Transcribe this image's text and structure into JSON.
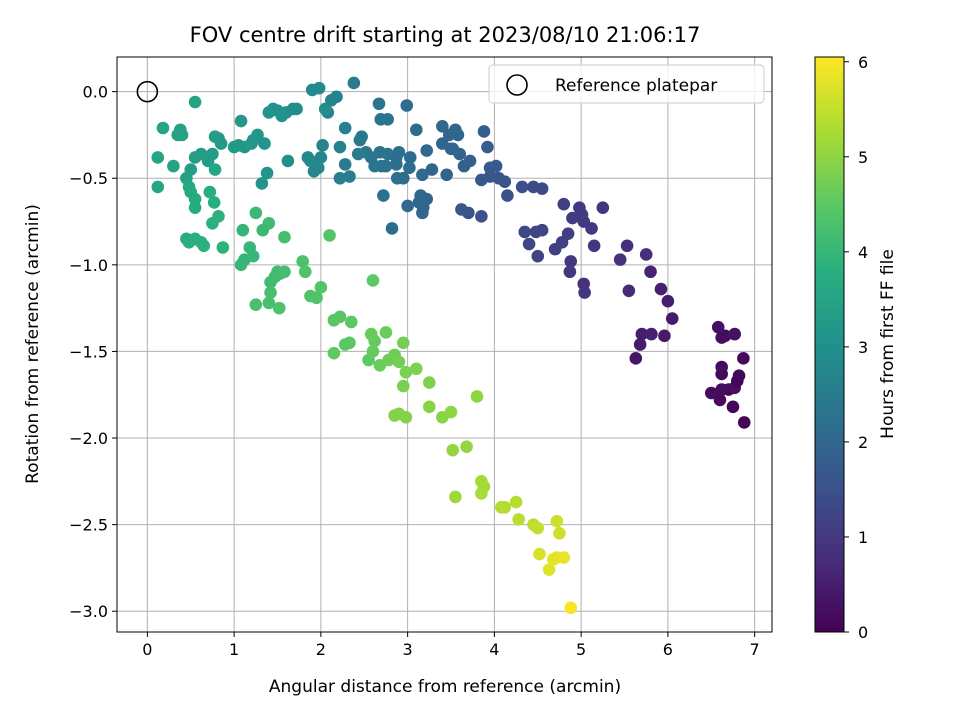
{
  "chart_data": {
    "type": "scatter",
    "title": "FOV centre drift starting at 2023/08/10 21:06:17",
    "xlabel": "Angular distance from reference (arcmin)",
    "ylabel": "Rotation from reference (arcmin)",
    "xlim": [
      -0.35,
      7.2
    ],
    "ylim": [
      -3.12,
      0.2
    ],
    "xticks": [
      "0",
      "1",
      "2",
      "3",
      "4",
      "5",
      "6",
      "7"
    ],
    "yticks": [
      "0.0",
      "−0.5",
      "−1.0",
      "−1.5",
      "−2.0",
      "−2.5",
      "−3.0"
    ],
    "grid": true,
    "legend": {
      "entry": "Reference platepar",
      "placement": "top-right"
    },
    "reference_point": {
      "x": 0,
      "y": 0
    },
    "colorbar": {
      "label": "Hours from first FF file",
      "range": [
        0,
        6.05
      ],
      "ticks": [
        "0",
        "1",
        "2",
        "3",
        "4",
        "5",
        "6"
      ],
      "colormap": "viridis"
    },
    "points": [
      [
        6.88,
        -1.91,
        0.05
      ],
      [
        6.75,
        -1.82,
        0.1
      ],
      [
        6.6,
        -1.78,
        0.15
      ],
      [
        6.5,
        -1.74,
        0.2
      ],
      [
        6.7,
        -1.72,
        0.15
      ],
      [
        6.62,
        -1.72,
        0.2
      ],
      [
        6.77,
        -1.71,
        0.25
      ],
      [
        6.8,
        -1.67,
        0.1
      ],
      [
        6.62,
        -1.63,
        0.15
      ],
      [
        6.82,
        -1.64,
        0.1
      ],
      [
        6.62,
        -1.59,
        0.2
      ],
      [
        6.87,
        -1.54,
        0.15
      ],
      [
        6.62,
        -1.42,
        0.25
      ],
      [
        6.66,
        -1.41,
        0.2
      ],
      [
        6.58,
        -1.36,
        0.3
      ],
      [
        6.77,
        -1.4,
        0.3
      ],
      [
        6.05,
        -1.31,
        0.45
      ],
      [
        6.0,
        -1.21,
        0.5
      ],
      [
        5.92,
        -1.14,
        0.55
      ],
      [
        5.8,
        -1.04,
        0.6
      ],
      [
        5.63,
        -1.54,
        0.35
      ],
      [
        5.68,
        -1.46,
        0.45
      ],
      [
        5.7,
        -1.4,
        0.5
      ],
      [
        5.81,
        -1.4,
        0.55
      ],
      [
        5.96,
        -1.41,
        0.45
      ],
      [
        5.55,
        -1.15,
        0.7
      ],
      [
        5.75,
        -0.94,
        0.8
      ],
      [
        5.53,
        -0.89,
        0.8
      ],
      [
        5.45,
        -0.97,
        0.85
      ],
      [
        5.25,
        -0.67,
        0.9
      ],
      [
        5.12,
        -0.79,
        1.0
      ],
      [
        5.15,
        -0.89,
        0.95
      ],
      [
        5.03,
        -0.75,
        1.0
      ],
      [
        5.01,
        -0.71,
        1.05
      ],
      [
        4.98,
        -0.67,
        1.0
      ],
      [
        5.03,
        -1.11,
        0.85
      ],
      [
        5.04,
        -1.16,
        0.9
      ],
      [
        4.9,
        -0.73,
        1.05
      ],
      [
        4.85,
        -0.82,
        1.1
      ],
      [
        4.8,
        -0.65,
        1.1
      ],
      [
        4.88,
        -0.98,
        1.0
      ],
      [
        4.87,
        -1.04,
        1.0
      ],
      [
        4.78,
        -0.87,
        1.15
      ],
      [
        4.7,
        -0.91,
        1.15
      ],
      [
        4.55,
        -0.8,
        1.2
      ],
      [
        4.5,
        -0.95,
        1.2
      ],
      [
        4.48,
        -0.81,
        1.25
      ],
      [
        4.4,
        -0.88,
        1.25
      ],
      [
        4.35,
        -0.81,
        1.3
      ],
      [
        4.55,
        -0.56,
        1.35
      ],
      [
        4.45,
        -0.55,
        1.4
      ],
      [
        4.32,
        -0.55,
        1.45
      ],
      [
        4.15,
        -0.6,
        1.5
      ],
      [
        4.12,
        -0.52,
        1.55
      ],
      [
        4.05,
        -0.5,
        1.6
      ],
      [
        3.95,
        -0.49,
        1.6
      ],
      [
        3.85,
        -0.51,
        1.65
      ],
      [
        4.02,
        -0.43,
        1.7
      ],
      [
        3.95,
        -0.44,
        1.7
      ],
      [
        3.92,
        -0.32,
        1.75
      ],
      [
        3.88,
        -0.23,
        1.8
      ],
      [
        3.85,
        -0.72,
        1.5
      ],
      [
        3.7,
        -0.7,
        1.55
      ],
      [
        3.62,
        -0.68,
        1.6
      ],
      [
        3.72,
        -0.4,
        1.85
      ],
      [
        3.65,
        -0.43,
        1.85
      ],
      [
        3.6,
        -0.36,
        1.9
      ],
      [
        3.58,
        -0.25,
        1.95
      ],
      [
        3.55,
        -0.22,
        2.0
      ],
      [
        3.5,
        -0.33,
        1.95
      ],
      [
        3.45,
        -0.48,
        1.9
      ],
      [
        3.4,
        -0.3,
        2.0
      ],
      [
        3.4,
        -0.2,
        2.0
      ],
      [
        3.28,
        -0.45,
        2.0
      ],
      [
        3.22,
        -0.62,
        1.95
      ],
      [
        3.18,
        -0.67,
        1.95
      ],
      [
        3.15,
        -0.6,
        2.0
      ],
      [
        3.17,
        -0.7,
        2.0
      ],
      [
        3.22,
        -0.34,
        2.05
      ],
      [
        3.17,
        -0.48,
        2.05
      ],
      [
        3.1,
        -0.22,
        2.1
      ],
      [
        3.03,
        -0.38,
        2.1
      ],
      [
        3.02,
        -0.44,
        2.15
      ],
      [
        2.95,
        -0.5,
        2.15
      ],
      [
        2.9,
        -0.35,
        2.2
      ],
      [
        2.87,
        -0.42,
        2.2
      ],
      [
        2.77,
        -0.36,
        2.25
      ],
      [
        2.75,
        -0.43,
        2.25
      ],
      [
        2.7,
        -0.43,
        2.3
      ],
      [
        2.68,
        -0.35,
        2.3
      ],
      [
        2.62,
        -0.43,
        2.35
      ],
      [
        2.58,
        -0.38,
        2.35
      ],
      [
        2.52,
        -0.35,
        2.4
      ],
      [
        2.47,
        -0.26,
        2.4
      ],
      [
        2.45,
        -0.28,
        2.45
      ],
      [
        2.43,
        -0.36,
        2.5
      ],
      [
        2.28,
        -0.42,
        2.5
      ],
      [
        2.22,
        -0.5,
        2.55
      ],
      [
        2.33,
        -0.49,
        2.55
      ],
      [
        2.28,
        -0.21,
        2.6
      ],
      [
        2.22,
        -0.32,
        2.6
      ],
      [
        2.18,
        -0.03,
        2.65
      ],
      [
        2.12,
        -0.05,
        2.65
      ],
      [
        2.08,
        -0.12,
        2.7
      ],
      [
        2.02,
        -0.31,
        2.7
      ],
      [
        2.0,
        -0.38,
        2.75
      ],
      [
        1.97,
        -0.44,
        2.75
      ],
      [
        1.92,
        -0.46,
        2.8
      ],
      [
        1.88,
        -0.4,
        2.8
      ],
      [
        1.9,
        0.01,
        2.85
      ],
      [
        1.98,
        0.02,
        2.85
      ],
      [
        2.05,
        -0.1,
        2.9
      ],
      [
        2.38,
        0.05,
        2.5
      ],
      [
        2.67,
        -0.07,
        2.35
      ],
      [
        2.69,
        -0.16,
        2.3
      ],
      [
        2.77,
        -0.16,
        2.3
      ],
      [
        2.82,
        -0.79,
        2.15
      ],
      [
        2.88,
        -0.5,
        2.2
      ],
      [
        2.87,
        -0.38,
        2.2
      ],
      [
        2.72,
        -0.6,
        2.25
      ],
      [
        2.99,
        -0.08,
        2.15
      ],
      [
        3.13,
        -0.64,
        2.0
      ],
      [
        3.52,
        -0.33,
        1.95
      ],
      [
        3.48,
        -0.25,
        1.95
      ],
      [
        3.0,
        -0.66,
        2.05
      ],
      [
        1.6,
        -0.12,
        3.0
      ],
      [
        1.55,
        -0.14,
        3.05
      ],
      [
        1.5,
        -0.11,
        3.05
      ],
      [
        1.45,
        -0.1,
        3.05
      ],
      [
        1.4,
        -0.12,
        3.1
      ],
      [
        1.35,
        -0.3,
        3.1
      ],
      [
        1.27,
        -0.25,
        3.15
      ],
      [
        1.22,
        -0.28,
        3.15
      ],
      [
        1.2,
        -0.3,
        3.15
      ],
      [
        1.12,
        -0.32,
        3.2
      ],
      [
        1.08,
        -0.17,
        3.2
      ],
      [
        1.05,
        -0.31,
        3.2
      ],
      [
        1.0,
        -0.32,
        3.25
      ],
      [
        0.85,
        -0.3,
        3.25
      ],
      [
        0.82,
        -0.27,
        3.25
      ],
      [
        0.78,
        -0.26,
        3.3
      ],
      [
        0.75,
        -0.36,
        3.3
      ],
      [
        0.7,
        -0.4,
        3.35
      ],
      [
        0.62,
        -0.36,
        3.35
      ],
      [
        0.55,
        -0.38,
        3.4
      ],
      [
        0.5,
        -0.45,
        3.4
      ],
      [
        0.45,
        -0.5,
        3.45
      ],
      [
        0.4,
        -0.25,
        3.45
      ],
      [
        0.38,
        -0.22,
        3.45
      ],
      [
        0.35,
        -0.25,
        3.5
      ],
      [
        0.3,
        -0.43,
        3.5
      ],
      [
        0.18,
        -0.21,
        3.55
      ],
      [
        0.12,
        -0.38,
        3.55
      ],
      [
        0.12,
        -0.55,
        3.6
      ],
      [
        0.48,
        -0.55,
        3.6
      ],
      [
        0.5,
        -0.58,
        3.65
      ],
      [
        0.55,
        -0.62,
        3.65
      ],
      [
        0.55,
        -0.67,
        3.7
      ],
      [
        0.78,
        -0.45,
        3.6
      ],
      [
        1.32,
        -0.53,
        3.1
      ],
      [
        1.38,
        -0.47,
        3.1
      ],
      [
        1.68,
        -0.1,
        2.9
      ],
      [
        1.72,
        -0.1,
        2.9
      ],
      [
        1.85,
        -0.38,
        2.8
      ],
      [
        1.62,
        -0.4,
        3.0
      ],
      [
        0.55,
        -0.06,
        3.5
      ],
      [
        0.45,
        -0.85,
        3.75
      ],
      [
        0.48,
        -0.87,
        3.8
      ],
      [
        0.55,
        -0.85,
        3.8
      ],
      [
        0.62,
        -0.87,
        3.85
      ],
      [
        0.65,
        -0.89,
        3.85
      ],
      [
        0.72,
        -0.58,
        3.75
      ],
      [
        0.77,
        -0.64,
        3.8
      ],
      [
        0.75,
        -0.76,
        3.85
      ],
      [
        0.82,
        -0.72,
        3.85
      ],
      [
        0.87,
        -0.9,
        3.9
      ],
      [
        1.1,
        -0.8,
        3.95
      ],
      [
        1.12,
        -0.97,
        3.95
      ],
      [
        1.08,
        -1.0,
        4.0
      ],
      [
        1.18,
        -0.9,
        4.0
      ],
      [
        1.22,
        -0.95,
        4.0
      ],
      [
        1.25,
        -0.7,
        4.05
      ],
      [
        1.33,
        -0.8,
        4.05
      ],
      [
        1.4,
        -0.76,
        4.1
      ],
      [
        1.42,
        -1.1,
        4.1
      ],
      [
        1.47,
        -1.07,
        4.15
      ],
      [
        1.5,
        -1.04,
        4.15
      ],
      [
        1.53,
        -1.05,
        4.15
      ],
      [
        1.58,
        -0.84,
        4.2
      ],
      [
        1.58,
        -1.04,
        4.2
      ],
      [
        1.25,
        -1.23,
        4.25
      ],
      [
        1.4,
        -1.22,
        4.25
      ],
      [
        1.42,
        -1.16,
        4.25
      ],
      [
        1.52,
        -1.25,
        4.3
      ],
      [
        1.79,
        -0.98,
        4.3
      ],
      [
        1.82,
        -1.04,
        4.35
      ],
      [
        1.88,
        -1.18,
        4.35
      ],
      [
        1.95,
        -1.19,
        4.35
      ],
      [
        2.0,
        -1.13,
        4.4
      ],
      [
        2.1,
        -0.83,
        4.4
      ],
      [
        2.15,
        -1.32,
        4.45
      ],
      [
        2.22,
        -1.3,
        4.45
      ],
      [
        2.35,
        -1.33,
        4.5
      ],
      [
        2.28,
        -1.46,
        4.5
      ],
      [
        2.33,
        -1.45,
        4.5
      ],
      [
        2.15,
        -1.51,
        4.55
      ],
      [
        2.55,
        -1.55,
        4.55
      ],
      [
        2.58,
        -1.4,
        4.6
      ],
      [
        2.6,
        -1.5,
        4.6
      ],
      [
        2.62,
        -1.44,
        4.6
      ],
      [
        2.68,
        -1.58,
        4.65
      ],
      [
        2.75,
        -1.39,
        4.65
      ],
      [
        2.78,
        -1.55,
        4.7
      ],
      [
        2.85,
        -1.52,
        4.7
      ],
      [
        2.9,
        -1.56,
        4.75
      ],
      [
        2.6,
        -1.09,
        4.5
      ],
      [
        2.95,
        -1.45,
        4.75
      ],
      [
        2.95,
        -1.7,
        4.8
      ],
      [
        2.98,
        -1.62,
        4.8
      ],
      [
        3.1,
        -1.6,
        4.85
      ],
      [
        3.25,
        -1.68,
        4.85
      ],
      [
        2.9,
        -1.86,
        4.9
      ],
      [
        2.85,
        -1.87,
        4.9
      ],
      [
        2.98,
        -1.88,
        4.9
      ],
      [
        3.25,
        -1.82,
        4.95
      ],
      [
        3.4,
        -1.88,
        4.95
      ],
      [
        3.5,
        -1.85,
        5.0
      ],
      [
        3.52,
        -2.07,
        5.05
      ],
      [
        3.68,
        -2.05,
        5.05
      ],
      [
        3.55,
        -2.34,
        5.15
      ],
      [
        3.8,
        -1.76,
        5.0
      ],
      [
        3.85,
        -2.25,
        5.2
      ],
      [
        3.88,
        -2.28,
        5.2
      ],
      [
        3.85,
        -2.32,
        5.25
      ],
      [
        4.08,
        -2.4,
        5.3
      ],
      [
        4.12,
        -2.4,
        5.35
      ],
      [
        4.25,
        -2.37,
        5.35
      ],
      [
        4.28,
        -2.47,
        5.4
      ],
      [
        4.45,
        -2.5,
        5.45
      ],
      [
        4.5,
        -2.52,
        5.5
      ],
      [
        4.72,
        -2.48,
        5.6
      ],
      [
        4.75,
        -2.55,
        5.6
      ],
      [
        4.52,
        -2.67,
        5.7
      ],
      [
        4.63,
        -2.76,
        5.75
      ],
      [
        4.68,
        -2.7,
        5.8
      ],
      [
        4.72,
        -2.69,
        5.8
      ],
      [
        4.8,
        -2.69,
        5.85
      ],
      [
        4.88,
        -2.98,
        6.0
      ]
    ]
  }
}
